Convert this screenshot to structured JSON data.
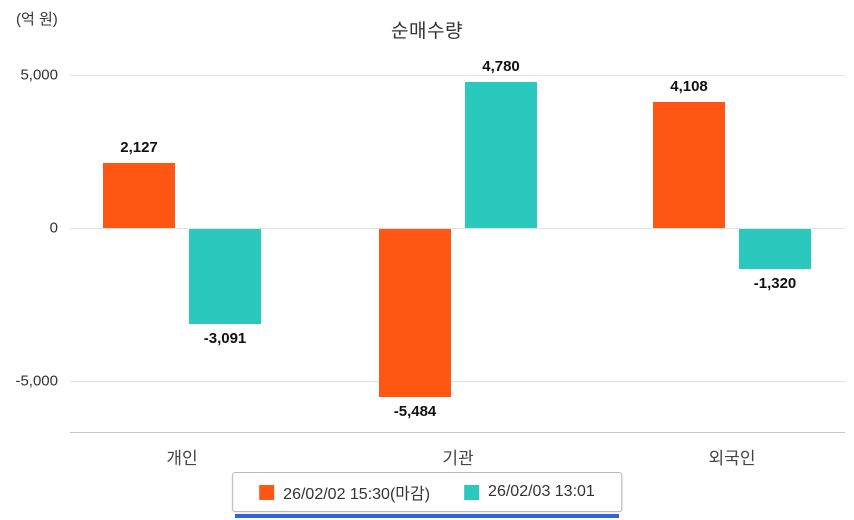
{
  "chart_data": {
    "type": "bar",
    "title": "순매수량",
    "unit_label": "(억 원)",
    "categories": [
      "개인",
      "기관",
      "외국인"
    ],
    "series": [
      {
        "name": "26/02/02 15:30(마감)",
        "color": "#FF5713",
        "values": [
          2127,
          -5484,
          4108
        ]
      },
      {
        "name": "26/02/03 13:01",
        "color": "#2BC8BE",
        "values": [
          -3091,
          4780,
          -1320
        ]
      }
    ],
    "value_labels": [
      [
        "2,127",
        "-5,484",
        "4,108"
      ],
      [
        "-3,091",
        "4,780",
        "-1,320"
      ]
    ],
    "y_ticks": [
      {
        "label": "5,000",
        "value": 5000
      },
      {
        "label": "0",
        "value": 0
      },
      {
        "label": "-5,000",
        "value": -5000
      }
    ],
    "ylim": [
      -6700,
      5500
    ],
    "grid": true,
    "legend_position": "bottom"
  },
  "colors": {
    "grid": "#e3e3e3",
    "axis_baseline": "#c8c8c8",
    "divider": "#2F63D8"
  }
}
